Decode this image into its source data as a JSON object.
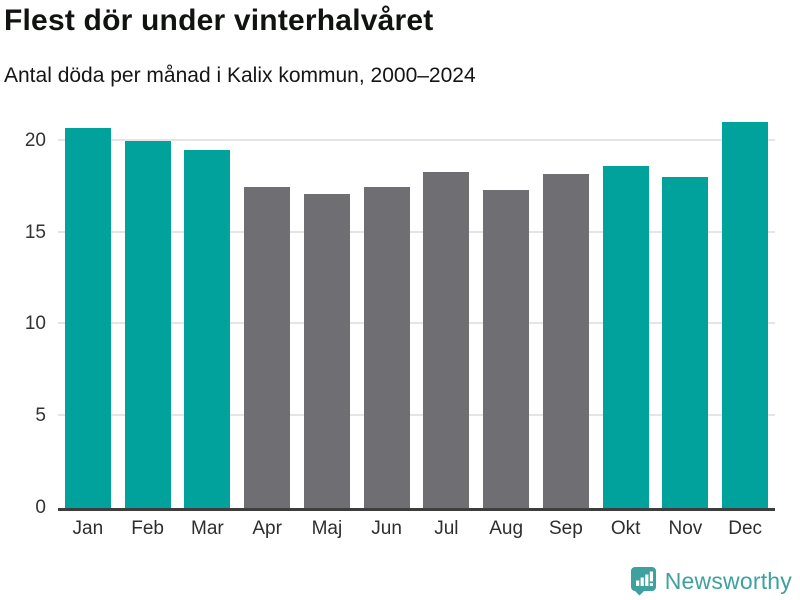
{
  "header": {
    "title": "Flest dör under vinterhalvåret",
    "subtitle": "Antal döda per månad i Kalix kommun, 2000–2024"
  },
  "chart_data": {
    "type": "bar",
    "title": "Flest dör under vinterhalvåret",
    "subtitle": "Antal döda per månad i Kalix kommun, 2000–2024",
    "categories": [
      "Jan",
      "Feb",
      "Mar",
      "Apr",
      "Maj",
      "Jun",
      "Jul",
      "Aug",
      "Sep",
      "Okt",
      "Nov",
      "Dec"
    ],
    "values": [
      20.7,
      20.0,
      19.5,
      17.5,
      17.1,
      17.5,
      18.3,
      17.3,
      18.2,
      18.6,
      18.0,
      21.0
    ],
    "bar_colors": [
      "#00A29B",
      "#00A29B",
      "#00A29B",
      "#6F6E73",
      "#6F6E73",
      "#6F6E73",
      "#6F6E73",
      "#6F6E73",
      "#6F6E73",
      "#00A29B",
      "#00A29B",
      "#00A29B"
    ],
    "highlight_color": "#00A29B",
    "muted_color": "#6F6E73",
    "xlabel": "",
    "ylabel": "",
    "yticks": [
      0,
      5,
      10,
      15,
      20
    ],
    "ylim": [
      0,
      21.4
    ],
    "grid": true,
    "gridline_color": "#E5E5E5",
    "axis_line_color": "#3D3D3D",
    "legend": "none"
  },
  "footer": {
    "brand": "Newsworthy",
    "brand_color": "#3FA0A0",
    "logo_icon": "newsworthy-bar-chart-badge-icon"
  }
}
